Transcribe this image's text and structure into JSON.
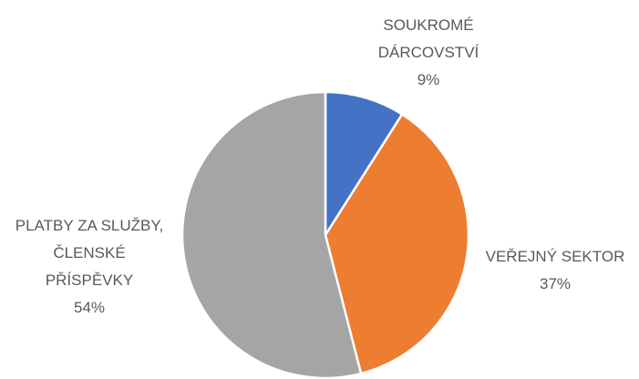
{
  "chart_data": {
    "type": "pie",
    "categories": [
      "SOUKROMÉ DÁRCOVSTVÍ",
      "VEŘEJNÝ SEKTOR",
      "PLATBY ZA SLUŽBY, ČLENSKÉ PŘÍSPĚVKY"
    ],
    "values": [
      9,
      37,
      54
    ],
    "value_labels": [
      "9%",
      "37%",
      "54%"
    ],
    "colors": [
      "#4472c4",
      "#ed7d31",
      "#a5a5a5"
    ]
  }
}
